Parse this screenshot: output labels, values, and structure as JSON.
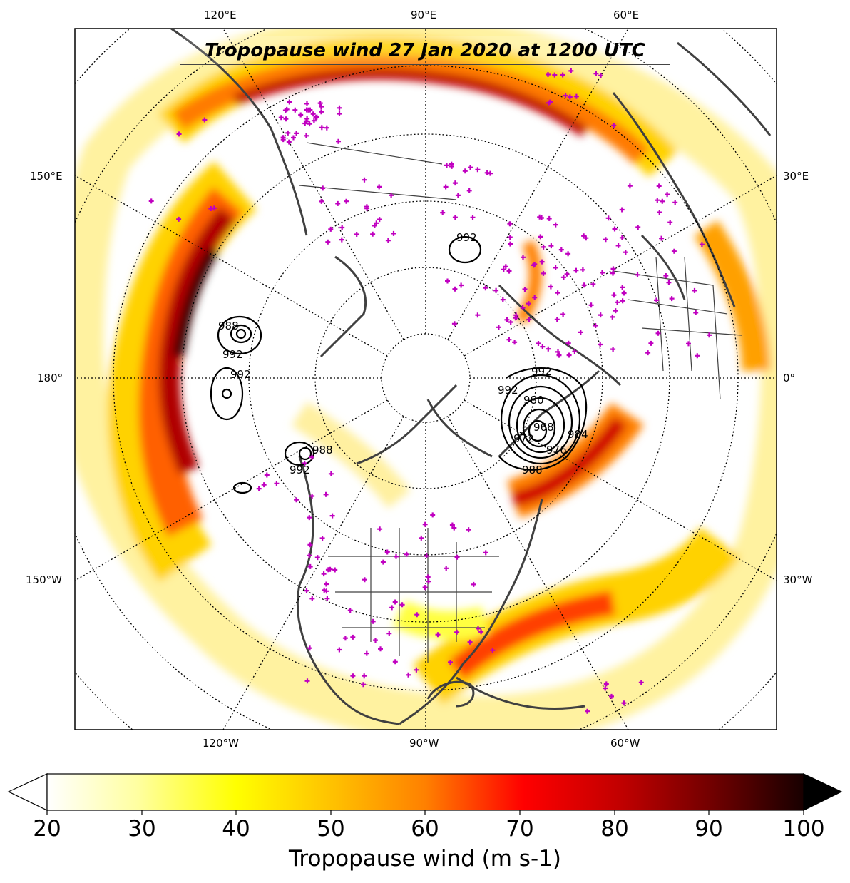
{
  "title": "Tropopause wind 27 Jan 2020 at 1200 UTC",
  "longitude_labels": {
    "top": [
      "120°E",
      "90°E",
      "60°E"
    ],
    "bottom": [
      "120°W",
      "90°W",
      "60°W"
    ],
    "left": [
      "150°E",
      "180°",
      "150°W"
    ],
    "right": [
      "30°E",
      "0°",
      "30°W"
    ]
  },
  "colorbar": {
    "label": "Tropopause wind (m s-1)",
    "ticks": [
      "20",
      "30",
      "40",
      "50",
      "60",
      "70",
      "80",
      "90",
      "100"
    ],
    "range": [
      20,
      100
    ],
    "extend": "both",
    "colormap": "hot_r"
  },
  "pressure_contour_labels": [
    "992",
    "988",
    "992",
    "992",
    "992",
    "988",
    "992",
    "992",
    "980",
    "968",
    "984",
    "976",
    "988",
    "972"
  ],
  "colors": {
    "station_markers": "#c000c0",
    "coastlines": "#404040",
    "contours": "#000000"
  }
}
